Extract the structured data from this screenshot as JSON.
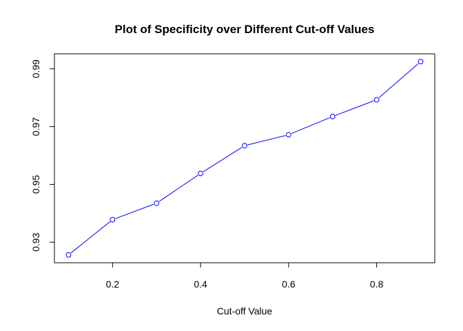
{
  "chart_data": {
    "type": "line",
    "title": "Plot of Specificity over Different Cut-off Values",
    "xlabel": "Cut-off Value",
    "ylabel": "",
    "x": [
      0.1,
      0.2,
      0.3,
      0.4,
      0.5,
      0.6,
      0.7,
      0.8,
      0.9
    ],
    "series": [
      {
        "values": [
          0.9256,
          0.9378,
          0.9435,
          0.9538,
          0.9634,
          0.9672,
          0.9735,
          0.9793,
          0.9925
        ],
        "color": "#0000ff",
        "marker": "open-circle"
      }
    ],
    "xticks": [
      0.2,
      0.4,
      0.6,
      0.8
    ],
    "xtick_labels": [
      "0.2",
      "0.4",
      "0.6",
      "0.8"
    ],
    "yticks": [
      0.93,
      0.95,
      0.97,
      0.99
    ],
    "ytick_labels": [
      "0.93",
      "0.95",
      "0.97",
      "0.99"
    ],
    "xlim": [
      0.068,
      0.932
    ],
    "ylim": [
      0.9229,
      0.9952
    ],
    "grid": false,
    "legend": "none"
  }
}
